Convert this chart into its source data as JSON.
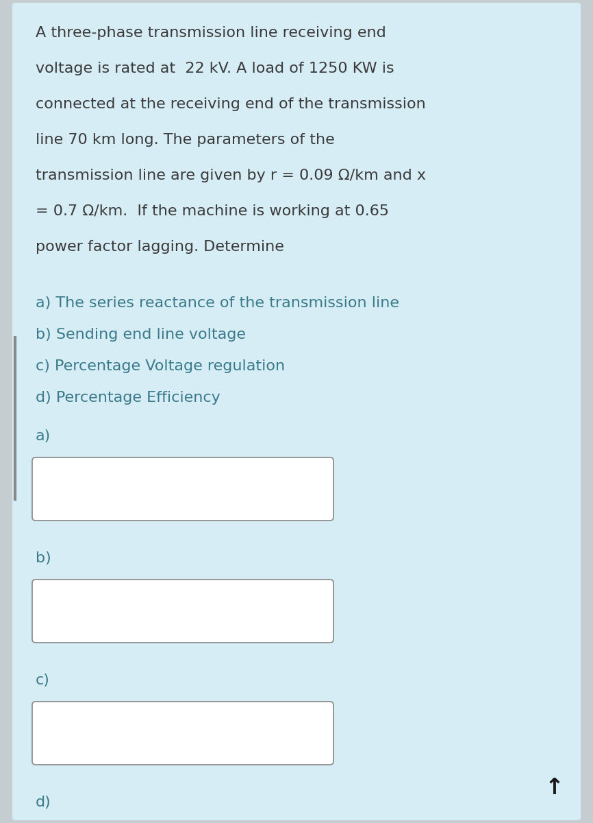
{
  "background_color": "#d6edf5",
  "outer_bg_color": "#c5cdd0",
  "panel_color": "#d6edf5",
  "text_color": "#3a3a3a",
  "label_color": "#3a7a8a",
  "box_bg": "#ffffff",
  "box_border": "#888888",
  "left_bar_color": "#888888",
  "arrow_color": "#1a1a1a",
  "para_lines": [
    "A three-phase transmission line receiving end",
    "voltage is rated at  22 kV. A load of 1250 KW is",
    "connected at the receiving end of the transmission",
    "line 70 km long. The parameters of the",
    "transmission line are given by r = 0.09 Ω/km and x",
    "= 0.7 Ω/km.  If the machine is working at 0.65",
    "power factor lagging. Determine"
  ],
  "items": [
    "a) The series reactance of the transmission line",
    "b) Sending end line voltage",
    "c) Percentage Voltage regulation",
    "d) Percentage Efficiency"
  ],
  "answer_labels": [
    "a)",
    "b)",
    "c)",
    "d)"
  ],
  "font_size_para": 16,
  "font_size_items": 16,
  "font_size_labels": 16,
  "font_size_arrow": 24
}
